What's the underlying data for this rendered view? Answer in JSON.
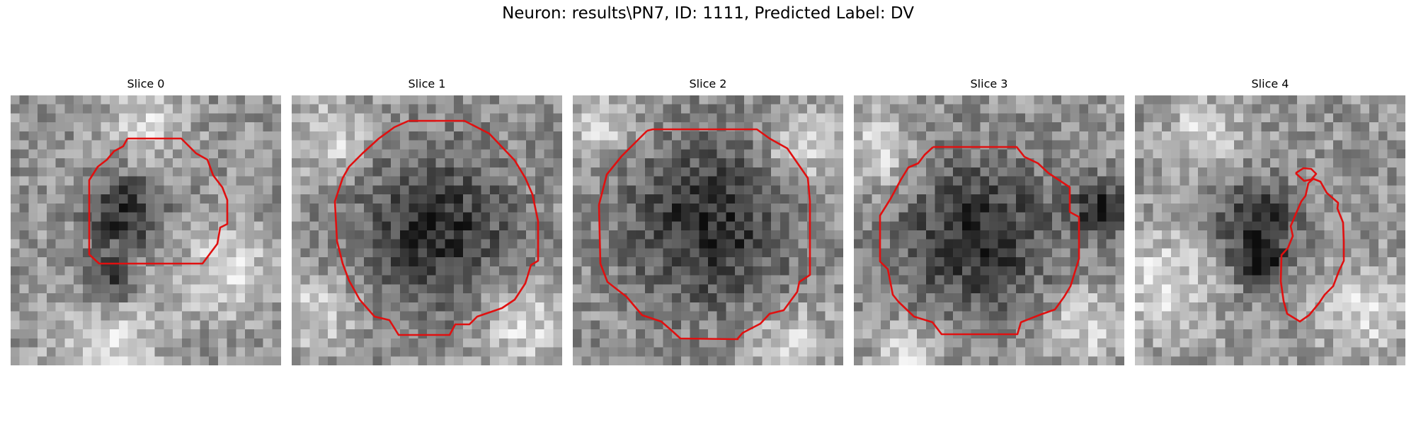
{
  "figure": {
    "title": "Neuron: results\\PN7, ID: 1111, Predicted Label: DV"
  },
  "slices": [
    {
      "label": "Slice 0"
    },
    {
      "label": "Slice 1"
    },
    {
      "label": "Slice 2"
    },
    {
      "label": "Slice 3"
    },
    {
      "label": "Slice 4"
    }
  ],
  "colors": {
    "contour": "#e01010"
  }
}
